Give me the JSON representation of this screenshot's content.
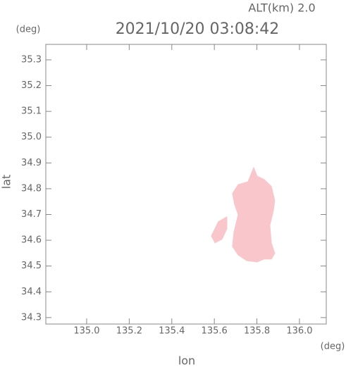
{
  "chart_data": {
    "type": "area-map",
    "title": "2021/10/20 03:08:42",
    "annotation": "ALT(km) 2.0",
    "y_unit": "(deg)",
    "x_unit": "(deg)",
    "xlabel": "lon",
    "ylabel": "lat",
    "xlim": [
      134.808,
      136.126
    ],
    "ylim": [
      34.275,
      35.36
    ],
    "xticks": [
      {
        "value": 135.0,
        "label": "135.0"
      },
      135.2,
      135.4,
      135.6,
      135.8,
      {
        "value": 136.0,
        "label": "136.0"
      }
    ],
    "yticks": [
      35.3,
      35.2,
      35.1,
      {
        "value": 35.0,
        "label": "35.0"
      },
      34.9,
      34.8,
      34.7,
      34.6,
      34.5,
      34.4,
      34.3
    ],
    "series": [
      {
        "color": "#f9c6cb",
        "x": [
          135.785,
          135.801,
          135.834,
          135.868,
          135.884,
          135.877,
          135.861,
          135.868,
          135.884,
          135.868,
          135.834,
          135.801,
          135.752,
          135.712,
          135.685,
          135.692,
          135.712,
          135.695,
          135.685,
          135.712,
          135.758
        ],
        "values": [
          34.882,
          34.849,
          34.836,
          34.809,
          34.754,
          34.713,
          34.658,
          34.59,
          34.549,
          34.527,
          34.527,
          34.516,
          34.521,
          34.543,
          34.576,
          34.631,
          34.699,
          34.74,
          34.781,
          34.816,
          34.827
        ]
      },
      {
        "color": "#f9c6cb",
        "x": [
          135.619,
          135.659,
          135.659,
          135.636,
          135.603,
          135.586
        ],
        "values": [
          34.672,
          34.691,
          34.645,
          34.604,
          34.59,
          34.617
        ]
      }
    ]
  }
}
